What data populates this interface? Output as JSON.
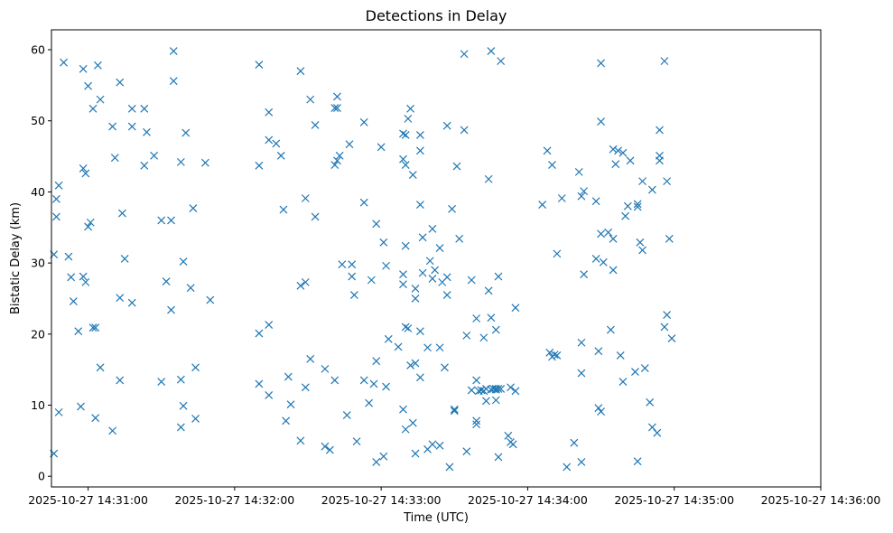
{
  "chart_data": {
    "type": "scatter",
    "title": "Detections in Delay",
    "xlabel": "Time (UTC)",
    "ylabel": "Bistatic Delay (km)",
    "xlim": [
      "2025-10-27 14:30:45",
      "2025-10-27 14:36:00"
    ],
    "ylim": [
      -1.5,
      62.8
    ],
    "x_ticks": [
      "2025-10-27 14:31:00",
      "2025-10-27 14:32:00",
      "2025-10-27 14:33:00",
      "2025-10-27 14:34:00",
      "2025-10-27 14:35:00",
      "2025-10-27 14:36:00"
    ],
    "y_ticks": [
      "0",
      "10",
      "20",
      "30",
      "40",
      "50",
      "60"
    ],
    "marker": "x",
    "color": "#1f77b4",
    "grid": false,
    "points": [
      [
        "2025-10-27 14:30:46",
        3.2
      ],
      [
        "2025-10-27 14:30:46",
        31.2
      ],
      [
        "2025-10-27 14:30:47",
        36.5
      ],
      [
        "2025-10-27 14:30:47",
        39.0
      ],
      [
        "2025-10-27 14:30:48",
        40.9
      ],
      [
        "2025-10-27 14:30:48",
        9.0
      ],
      [
        "2025-10-27 14:30:50",
        58.2
      ],
      [
        "2025-10-27 14:30:52",
        30.9
      ],
      [
        "2025-10-27 14:30:53",
        28.0
      ],
      [
        "2025-10-27 14:30:54",
        24.6
      ],
      [
        "2025-10-27 14:30:56",
        20.4
      ],
      [
        "2025-10-27 14:30:57",
        9.8
      ],
      [
        "2025-10-27 14:30:58",
        57.3
      ],
      [
        "2025-10-27 14:30:58",
        43.3
      ],
      [
        "2025-10-27 14:30:58",
        28.1
      ],
      [
        "2025-10-27 14:30:59",
        42.6
      ],
      [
        "2025-10-27 14:30:59",
        27.3
      ],
      [
        "2025-10-27 14:31:00",
        54.9
      ],
      [
        "2025-10-27 14:31:00",
        35.1
      ],
      [
        "2025-10-27 14:31:01",
        35.7
      ],
      [
        "2025-10-27 14:31:02",
        51.7
      ],
      [
        "2025-10-27 14:31:02",
        20.9
      ],
      [
        "2025-10-27 14:31:03",
        20.9
      ],
      [
        "2025-10-27 14:31:03",
        8.2
      ],
      [
        "2025-10-27 14:31:04",
        57.8
      ],
      [
        "2025-10-27 14:31:05",
        53.0
      ],
      [
        "2025-10-27 14:31:05",
        15.3
      ],
      [
        "2025-10-27 14:31:10",
        49.2
      ],
      [
        "2025-10-27 14:31:10",
        6.4
      ],
      [
        "2025-10-27 14:31:11",
        44.8
      ],
      [
        "2025-10-27 14:31:13",
        55.4
      ],
      [
        "2025-10-27 14:31:13",
        25.1
      ],
      [
        "2025-10-27 14:31:13",
        13.5
      ],
      [
        "2025-10-27 14:31:14",
        37.0
      ],
      [
        "2025-10-27 14:31:15",
        30.6
      ],
      [
        "2025-10-27 14:31:18",
        51.7
      ],
      [
        "2025-10-27 14:31:18",
        49.2
      ],
      [
        "2025-10-27 14:31:18",
        24.4
      ],
      [
        "2025-10-27 14:31:23",
        51.7
      ],
      [
        "2025-10-27 14:31:23",
        43.7
      ],
      [
        "2025-10-27 14:31:24",
        48.4
      ],
      [
        "2025-10-27 14:31:27",
        45.1
      ],
      [
        "2025-10-27 14:31:30",
        36.0
      ],
      [
        "2025-10-27 14:31:30",
        13.3
      ],
      [
        "2025-10-27 14:31:32",
        27.4
      ],
      [
        "2025-10-27 14:31:34",
        36.0
      ],
      [
        "2025-10-27 14:31:34",
        23.4
      ],
      [
        "2025-10-27 14:31:35",
        59.8
      ],
      [
        "2025-10-27 14:31:35",
        55.6
      ],
      [
        "2025-10-27 14:31:38",
        44.2
      ],
      [
        "2025-10-27 14:31:38",
        13.6
      ],
      [
        "2025-10-27 14:31:38",
        6.9
      ],
      [
        "2025-10-27 14:31:39",
        30.2
      ],
      [
        "2025-10-27 14:31:39",
        9.9
      ],
      [
        "2025-10-27 14:31:40",
        48.3
      ],
      [
        "2025-10-27 14:31:42",
        26.5
      ],
      [
        "2025-10-27 14:31:43",
        37.7
      ],
      [
        "2025-10-27 14:31:44",
        15.3
      ],
      [
        "2025-10-27 14:31:44",
        8.1
      ],
      [
        "2025-10-27 14:31:48",
        44.1
      ],
      [
        "2025-10-27 14:31:50",
        24.8
      ],
      [
        "2025-10-27 14:32:10",
        57.9
      ],
      [
        "2025-10-27 14:32:10",
        43.7
      ],
      [
        "2025-10-27 14:32:10",
        20.1
      ],
      [
        "2025-10-27 14:32:10",
        13.0
      ],
      [
        "2025-10-27 14:32:14",
        51.2
      ],
      [
        "2025-10-27 14:32:14",
        47.3
      ],
      [
        "2025-10-27 14:32:14",
        21.3
      ],
      [
        "2025-10-27 14:32:14",
        11.4
      ],
      [
        "2025-10-27 14:32:17",
        46.8
      ],
      [
        "2025-10-27 14:32:19",
        45.1
      ],
      [
        "2025-10-27 14:32:20",
        37.5
      ],
      [
        "2025-10-27 14:32:21",
        7.8
      ],
      [
        "2025-10-27 14:32:22",
        14.0
      ],
      [
        "2025-10-27 14:32:23",
        10.1
      ],
      [
        "2025-10-27 14:32:27",
        57.0
      ],
      [
        "2025-10-27 14:32:27",
        26.8
      ],
      [
        "2025-10-27 14:32:27",
        5.0
      ],
      [
        "2025-10-27 14:32:29",
        39.1
      ],
      [
        "2025-10-27 14:32:29",
        27.3
      ],
      [
        "2025-10-27 14:32:29",
        12.5
      ],
      [
        "2025-10-27 14:32:31",
        53.0
      ],
      [
        "2025-10-27 14:32:31",
        16.5
      ],
      [
        "2025-10-27 14:32:33",
        49.4
      ],
      [
        "2025-10-27 14:32:33",
        36.5
      ],
      [
        "2025-10-27 14:32:37",
        15.1
      ],
      [
        "2025-10-27 14:32:37",
        4.2
      ],
      [
        "2025-10-27 14:32:39",
        3.7
      ],
      [
        "2025-10-27 14:32:41",
        51.8
      ],
      [
        "2025-10-27 14:32:41",
        43.8
      ],
      [
        "2025-10-27 14:32:41",
        13.5
      ],
      [
        "2025-10-27 14:32:42",
        53.4
      ],
      [
        "2025-10-27 14:32:42",
        51.8
      ],
      [
        "2025-10-27 14:32:42",
        44.4
      ],
      [
        "2025-10-27 14:32:43",
        45.1
      ],
      [
        "2025-10-27 14:32:44",
        29.8
      ],
      [
        "2025-10-27 14:32:46",
        8.6
      ],
      [
        "2025-10-27 14:32:47",
        46.7
      ],
      [
        "2025-10-27 14:32:48",
        29.8
      ],
      [
        "2025-10-27 14:32:48",
        28.1
      ],
      [
        "2025-10-27 14:32:49",
        25.5
      ],
      [
        "2025-10-27 14:32:50",
        4.9
      ],
      [
        "2025-10-27 14:32:53",
        49.8
      ],
      [
        "2025-10-27 14:32:53",
        38.5
      ],
      [
        "2025-10-27 14:32:53",
        13.5
      ],
      [
        "2025-10-27 14:32:55",
        10.3
      ],
      [
        "2025-10-27 14:32:56",
        27.6
      ],
      [
        "2025-10-27 14:32:57",
        13.0
      ],
      [
        "2025-10-27 14:32:58",
        35.5
      ],
      [
        "2025-10-27 14:32:58",
        16.2
      ],
      [
        "2025-10-27 14:32:58",
        2.0
      ],
      [
        "2025-10-27 14:33:00",
        46.3
      ],
      [
        "2025-10-27 14:33:01",
        32.9
      ],
      [
        "2025-10-27 14:33:01",
        2.8
      ],
      [
        "2025-10-27 14:33:02",
        29.6
      ],
      [
        "2025-10-27 14:33:02",
        12.6
      ],
      [
        "2025-10-27 14:33:03",
        19.3
      ],
      [
        "2025-10-27 14:33:07",
        18.2
      ],
      [
        "2025-10-27 14:33:09",
        48.2
      ],
      [
        "2025-10-27 14:33:09",
        44.6
      ],
      [
        "2025-10-27 14:33:09",
        28.4
      ],
      [
        "2025-10-27 14:33:09",
        27.0
      ],
      [
        "2025-10-27 14:33:09",
        9.4
      ],
      [
        "2025-10-27 14:33:10",
        48.0
      ],
      [
        "2025-10-27 14:33:10",
        43.8
      ],
      [
        "2025-10-27 14:33:10",
        32.4
      ],
      [
        "2025-10-27 14:33:10",
        21.0
      ],
      [
        "2025-10-27 14:33:10",
        6.6
      ],
      [
        "2025-10-27 14:33:11",
        50.3
      ],
      [
        "2025-10-27 14:33:11",
        20.8
      ],
      [
        "2025-10-27 14:33:12",
        51.7
      ],
      [
        "2025-10-27 14:33:12",
        15.6
      ],
      [
        "2025-10-27 14:33:13",
        42.4
      ],
      [
        "2025-10-27 14:33:13",
        7.5
      ],
      [
        "2025-10-27 14:33:14",
        26.4
      ],
      [
        "2025-10-27 14:33:14",
        25.0
      ],
      [
        "2025-10-27 14:33:14",
        15.9
      ],
      [
        "2025-10-27 14:33:14",
        3.2
      ],
      [
        "2025-10-27 14:33:16",
        48.0
      ],
      [
        "2025-10-27 14:33:16",
        45.8
      ],
      [
        "2025-10-27 14:33:16",
        38.2
      ],
      [
        "2025-10-27 14:33:16",
        20.4
      ],
      [
        "2025-10-27 14:33:16",
        13.9
      ],
      [
        "2025-10-27 14:33:17",
        33.6
      ],
      [
        "2025-10-27 14:33:17",
        28.6
      ],
      [
        "2025-10-27 14:33:19",
        18.1
      ],
      [
        "2025-10-27 14:33:19",
        3.8
      ],
      [
        "2025-10-27 14:33:20",
        30.3
      ],
      [
        "2025-10-27 14:33:21",
        34.8
      ],
      [
        "2025-10-27 14:33:21",
        27.8
      ],
      [
        "2025-10-27 14:33:21",
        4.5
      ],
      [
        "2025-10-27 14:33:22",
        29.0
      ],
      [
        "2025-10-27 14:33:24",
        32.1
      ],
      [
        "2025-10-27 14:33:24",
        18.1
      ],
      [
        "2025-10-27 14:33:24",
        4.3
      ],
      [
        "2025-10-27 14:33:25",
        27.3
      ],
      [
        "2025-10-27 14:33:26",
        15.3
      ],
      [
        "2025-10-27 14:33:27",
        49.3
      ],
      [
        "2025-10-27 14:33:27",
        28.0
      ],
      [
        "2025-10-27 14:33:27",
        25.5
      ],
      [
        "2025-10-27 14:33:28",
        1.3
      ],
      [
        "2025-10-27 14:33:29",
        37.6
      ],
      [
        "2025-10-27 14:33:30",
        9.4
      ],
      [
        "2025-10-27 14:33:30",
        9.2
      ],
      [
        "2025-10-27 14:33:31",
        43.6
      ],
      [
        "2025-10-27 14:33:32",
        33.4
      ],
      [
        "2025-10-27 14:33:34",
        59.4
      ],
      [
        "2025-10-27 14:33:34",
        48.7
      ],
      [
        "2025-10-27 14:33:35",
        19.8
      ],
      [
        "2025-10-27 14:33:35",
        3.5
      ],
      [
        "2025-10-27 14:33:37",
        27.6
      ],
      [
        "2025-10-27 14:33:37",
        12.1
      ],
      [
        "2025-10-27 14:33:39",
        22.2
      ],
      [
        "2025-10-27 14:33:39",
        13.5
      ],
      [
        "2025-10-27 14:33:39",
        7.8
      ],
      [
        "2025-10-27 14:33:39",
        7.3
      ],
      [
        "2025-10-27 14:33:40",
        12.0
      ],
      [
        "2025-10-27 14:33:41",
        12.1
      ],
      [
        "2025-10-27 14:33:42",
        12.0
      ],
      [
        "2025-10-27 14:33:42",
        19.5
      ],
      [
        "2025-10-27 14:33:43",
        12.3
      ],
      [
        "2025-10-27 14:33:43",
        10.6
      ],
      [
        "2025-10-27 14:33:44",
        26.1
      ],
      [
        "2025-10-27 14:33:44",
        41.8
      ],
      [
        "2025-10-27 14:33:45",
        59.8
      ],
      [
        "2025-10-27 14:33:45",
        22.3
      ],
      [
        "2025-10-27 14:33:45",
        12.2
      ],
      [
        "2025-10-27 14:33:46",
        12.3
      ],
      [
        "2025-10-27 14:33:47",
        12.3
      ],
      [
        "2025-10-27 14:33:47",
        20.6
      ],
      [
        "2025-10-27 14:33:47",
        12.2
      ],
      [
        "2025-10-27 14:33:47",
        10.7
      ],
      [
        "2025-10-27 14:33:48",
        28.1
      ],
      [
        "2025-10-27 14:33:48",
        12.3
      ],
      [
        "2025-10-27 14:33:48",
        2.7
      ],
      [
        "2025-10-27 14:33:49",
        58.4
      ],
      [
        "2025-10-27 14:33:49",
        12.3
      ],
      [
        "2025-10-27 14:33:52",
        5.7
      ],
      [
        "2025-10-27 14:33:53",
        12.5
      ],
      [
        "2025-10-27 14:33:53",
        4.8
      ],
      [
        "2025-10-27 14:33:54",
        4.5
      ],
      [
        "2025-10-27 14:33:55",
        23.7
      ],
      [
        "2025-10-27 14:33:55",
        12.0
      ],
      [
        "2025-10-27 14:34:06",
        38.2
      ],
      [
        "2025-10-27 14:34:08",
        45.8
      ],
      [
        "2025-10-27 14:34:09",
        17.4
      ],
      [
        "2025-10-27 14:34:10",
        43.8
      ],
      [
        "2025-10-27 14:34:10",
        16.8
      ],
      [
        "2025-10-27 14:34:11",
        17.1
      ],
      [
        "2025-10-27 14:34:12",
        31.3
      ],
      [
        "2025-10-27 14:34:12",
        17.0
      ],
      [
        "2025-10-27 14:34:14",
        39.1
      ],
      [
        "2025-10-27 14:34:16",
        1.3
      ],
      [
        "2025-10-27 14:34:19",
        4.7
      ],
      [
        "2025-10-27 14:34:21",
        42.8
      ],
      [
        "2025-10-27 14:34:22",
        39.4
      ],
      [
        "2025-10-27 14:34:22",
        18.8
      ],
      [
        "2025-10-27 14:34:22",
        14.5
      ],
      [
        "2025-10-27 14:34:22",
        2.0
      ],
      [
        "2025-10-27 14:34:23",
        40.1
      ],
      [
        "2025-10-27 14:34:23",
        28.4
      ],
      [
        "2025-10-27 14:34:28",
        38.7
      ],
      [
        "2025-10-27 14:34:28",
        30.6
      ],
      [
        "2025-10-27 14:34:29",
        17.6
      ],
      [
        "2025-10-27 14:34:29",
        9.6
      ],
      [
        "2025-10-27 14:34:30",
        58.1
      ],
      [
        "2025-10-27 14:34:30",
        49.9
      ],
      [
        "2025-10-27 14:34:30",
        34.1
      ],
      [
        "2025-10-27 14:34:30",
        9.1
      ],
      [
        "2025-10-27 14:34:31",
        30.1
      ],
      [
        "2025-10-27 14:34:33",
        34.3
      ],
      [
        "2025-10-27 14:34:34",
        20.6
      ],
      [
        "2025-10-27 14:34:35",
        46.0
      ],
      [
        "2025-10-27 14:34:35",
        33.4
      ],
      [
        "2025-10-27 14:34:35",
        29.0
      ],
      [
        "2025-10-27 14:34:36",
        43.9
      ],
      [
        "2025-10-27 14:34:37",
        45.8
      ],
      [
        "2025-10-27 14:34:38",
        17.0
      ],
      [
        "2025-10-27 14:34:39",
        45.5
      ],
      [
        "2025-10-27 14:34:39",
        13.3
      ],
      [
        "2025-10-27 14:34:40",
        36.6
      ],
      [
        "2025-10-27 14:34:41",
        38.0
      ],
      [
        "2025-10-27 14:34:42",
        44.4
      ],
      [
        "2025-10-27 14:34:44",
        14.7
      ],
      [
        "2025-10-27 14:34:45",
        38.3
      ],
      [
        "2025-10-27 14:34:45",
        37.9
      ],
      [
        "2025-10-27 14:34:45",
        2.1
      ],
      [
        "2025-10-27 14:34:46",
        32.9
      ],
      [
        "2025-10-27 14:34:47",
        41.5
      ],
      [
        "2025-10-27 14:34:47",
        31.8
      ],
      [
        "2025-10-27 14:34:48",
        15.2
      ],
      [
        "2025-10-27 14:34:50",
        10.4
      ],
      [
        "2025-10-27 14:34:51",
        40.3
      ],
      [
        "2025-10-27 14:34:51",
        6.9
      ],
      [
        "2025-10-27 14:34:53",
        6.1
      ],
      [
        "2025-10-27 14:34:54",
        44.4
      ],
      [
        "2025-10-27 14:34:54",
        45.1
      ],
      [
        "2025-10-27 14:34:54",
        48.7
      ],
      [
        "2025-10-27 14:34:56",
        58.4
      ],
      [
        "2025-10-27 14:34:56",
        21.0
      ],
      [
        "2025-10-27 14:34:57",
        41.5
      ],
      [
        "2025-10-27 14:34:57",
        22.7
      ],
      [
        "2025-10-27 14:34:58",
        33.4
      ],
      [
        "2025-10-27 14:34:59",
        19.4
      ]
    ]
  }
}
